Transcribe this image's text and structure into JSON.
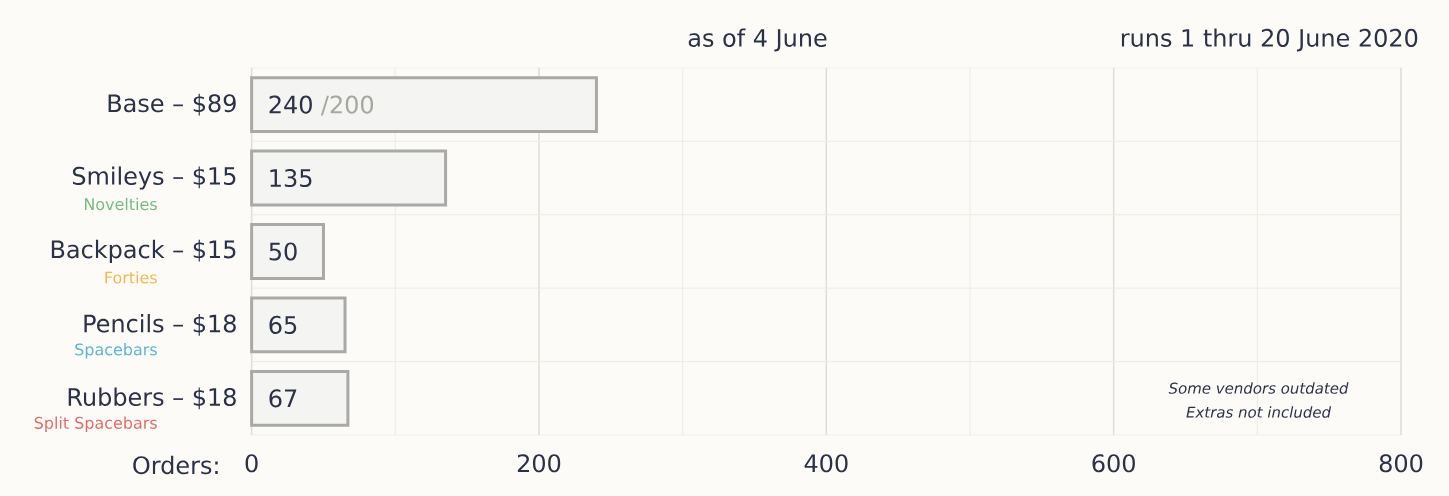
{
  "chart_data": {
    "type": "bar",
    "orientation": "horizontal",
    "subtitle": "as of 4 June",
    "xlabel": "Orders:",
    "categories": [
      "Base – $89",
      "Smileys – $15",
      "Backpack – $15",
      "Pencils – $18",
      "Rubbers – $18"
    ],
    "values": [
      240,
      135,
      50,
      65,
      67
    ],
    "color": "#f4f4f2",
    "data_labels": true,
    "xlim": [
      0,
      800
    ],
    "xticks": [
      0,
      {
        "value": 100,
        "label": null
      },
      200,
      {
        "value": 300,
        "label": null
      },
      400,
      {
        "value": 500,
        "label": null
      },
      600,
      {
        "value": 700,
        "label": null
      },
      800
    ],
    "grid": true,
    "annotations": [
      "runs 1 thru 20 June 2020",
      "/200",
      "Novelties",
      "Forties",
      "Spacebars",
      "Split Spacebars",
      "Some vendors outdated",
      "Extras not included"
    ]
  }
}
